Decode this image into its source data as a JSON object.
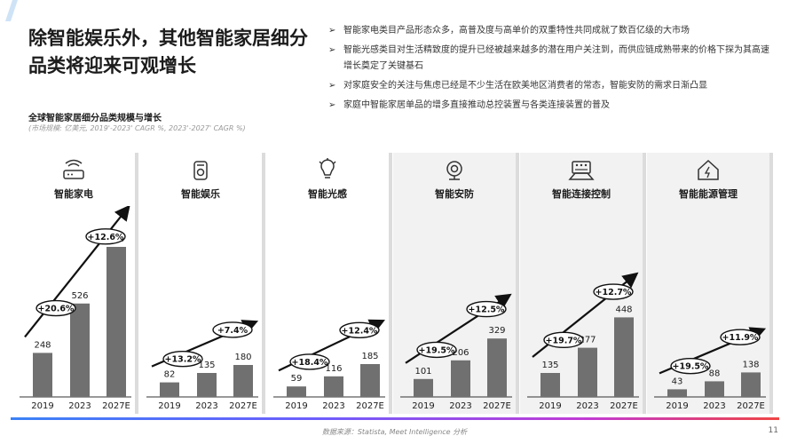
{
  "headline": "除智能娱乐外，其他智能家居细分品类将迎来可观增长",
  "bullets": [
    "智能家电类目产品形态众多，高普及度与高单价的双重特性共同成就了数百亿级的大市场",
    "智能光感类目对生活精致度的提升已经被越来越多的潜在用户关注到，而供应链成熟带来的价格下探为其高速增长奠定了关键基石",
    "对家庭安全的关注与焦虑已经是不少生活在欧美地区消费者的常态，智能安防的需求日渐凸显",
    "家庭中智能家居单品的增多直接推动总控装置与各类连接装置的普及"
  ],
  "bullet_marker": "➢",
  "subtitle": "全球智能家居细分品类规模与增长",
  "subnote": "(市场规模: 亿美元, 2019'-2023' CAGR %, 2023'-2027' CAGR %)",
  "source": "数据来源：Statista, Meet Intelligence 分析",
  "page_number": "11",
  "colors": {
    "bar": "#707070",
    "text": "#1c1c1c",
    "grey_panel": "#f2f2f2"
  },
  "chart_data": [
    {
      "type": "bar",
      "title": "智能家电",
      "icon": "router-icon",
      "categories": [
        "2019",
        "2023",
        "2027E"
      ],
      "values": [
        248,
        526,
        845
      ],
      "cagr": [
        "+20.6%",
        "+12.6%"
      ]
    },
    {
      "type": "bar",
      "title": "智能娱乐",
      "icon": "speaker-icon",
      "categories": [
        "2019",
        "2023",
        "2027E"
      ],
      "values": [
        82,
        135,
        180
      ],
      "cagr": [
        "+13.2%",
        "+7.4%"
      ]
    },
    {
      "type": "bar",
      "title": "智能光感",
      "icon": "bulb-icon",
      "categories": [
        "2019",
        "2023",
        "2027E"
      ],
      "values": [
        59,
        116,
        185
      ],
      "cagr": [
        "+18.4%",
        "+12.4%"
      ]
    },
    {
      "type": "bar",
      "title": "智能安防",
      "icon": "camera-icon",
      "categories": [
        "2019",
        "2023",
        "2027E"
      ],
      "values": [
        101,
        206,
        329
      ],
      "cagr": [
        "+19.5%",
        "+12.5%"
      ]
    },
    {
      "type": "bar",
      "title": "智能连接控制",
      "icon": "control-panel-icon",
      "categories": [
        "2019",
        "2023",
        "2027E"
      ],
      "values": [
        135,
        277,
        448
      ],
      "cagr": [
        "+19.7%",
        "+12.7%"
      ]
    },
    {
      "type": "bar",
      "title": "智能能源管理",
      "icon": "home-energy-icon",
      "categories": [
        "2019",
        "2023",
        "2027E"
      ],
      "values": [
        43,
        88,
        138
      ],
      "cagr": [
        "+19.5%",
        "+11.9%"
      ]
    }
  ]
}
